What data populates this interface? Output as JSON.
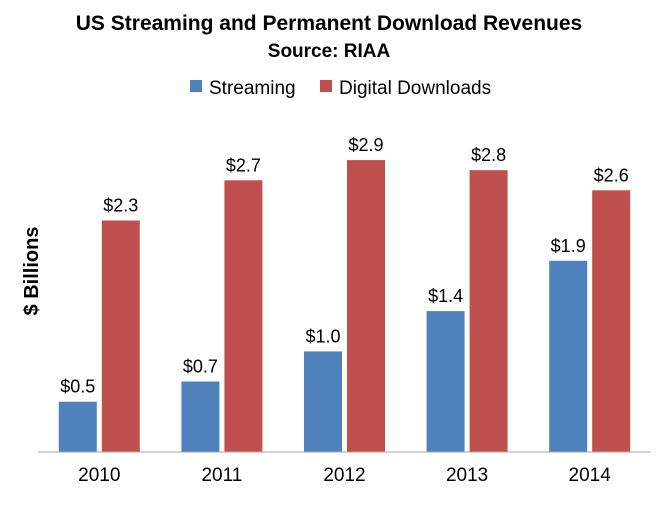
{
  "chart_data": {
    "type": "bar",
    "title": "US Streaming and Permanent Download Revenues",
    "subtitle": "Source: RIAA",
    "xlabel": "",
    "ylabel": "$ Billions",
    "categories": [
      "2010",
      "2011",
      "2012",
      "2013",
      "2014"
    ],
    "series": [
      {
        "name": "Streaming",
        "color": "#4F81BD",
        "values": [
          0.5,
          0.7,
          1.0,
          1.4,
          1.9
        ],
        "labels": [
          "$0.5",
          "$0.7",
          "$1.0",
          "$1.4",
          "$1.9"
        ]
      },
      {
        "name": "Digital Downloads",
        "color": "#C0504D",
        "values": [
          2.3,
          2.7,
          2.9,
          2.8,
          2.6
        ],
        "labels": [
          "$2.3",
          "$2.7",
          "$2.9",
          "$2.8",
          "$2.6"
        ]
      }
    ],
    "ylim": [
      0,
      3.1
    ],
    "grid": false,
    "legend_position": "top-center",
    "axis_color": "#A6A6A6"
  }
}
